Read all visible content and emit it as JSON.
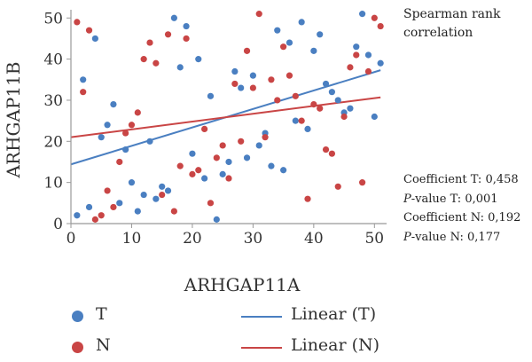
{
  "method_label": "Spearman rank correlation",
  "stats": {
    "coef_t_label": "Coefficient T: ",
    "coef_t": "0,458",
    "p_t_prefix": "P",
    "p_t_label": "-value T: ",
    "p_t": "0,001",
    "coef_n_label": "Coefficient N: ",
    "coef_n": "0,192",
    "p_n_prefix": "P",
    "p_n_label": "-value N: ",
    "p_n": "0,177"
  },
  "legend": {
    "t_label": "T",
    "n_label": "N",
    "linear_t_label": "Linear (T)",
    "linear_n_label": "Linear (N)"
  },
  "colors": {
    "T": "#4a7fc1",
    "N": "#c94545",
    "axis": "#999999"
  },
  "chart_data": {
    "type": "scatter",
    "xlabel": "ARHGAP11A",
    "ylabel": "ARHGAP11B",
    "xlim": [
      0,
      52
    ],
    "ylim": [
      0,
      52
    ],
    "xticks": [
      0,
      10,
      20,
      30,
      40,
      50
    ],
    "yticks": [
      0,
      10,
      20,
      30,
      40,
      50
    ],
    "grid": false,
    "series": [
      {
        "name": "T",
        "points": [
          [
            1,
            2
          ],
          [
            2,
            35
          ],
          [
            3,
            4
          ],
          [
            4,
            45
          ],
          [
            5,
            21
          ],
          [
            6,
            24
          ],
          [
            7,
            29
          ],
          [
            8,
            5
          ],
          [
            9,
            18
          ],
          [
            10,
            10
          ],
          [
            11,
            3
          ],
          [
            12,
            7
          ],
          [
            13,
            20
          ],
          [
            14,
            6
          ],
          [
            15,
            9
          ],
          [
            16,
            8
          ],
          [
            17,
            50
          ],
          [
            18,
            38
          ],
          [
            19,
            48
          ],
          [
            20,
            17
          ],
          [
            21,
            40
          ],
          [
            22,
            11
          ],
          [
            23,
            31
          ],
          [
            24,
            1
          ],
          [
            25,
            12
          ],
          [
            26,
            15
          ],
          [
            27,
            37
          ],
          [
            28,
            33
          ],
          [
            29,
            16
          ],
          [
            30,
            36
          ],
          [
            31,
            19
          ],
          [
            32,
            22
          ],
          [
            33,
            14
          ],
          [
            34,
            47
          ],
          [
            35,
            13
          ],
          [
            36,
            44
          ],
          [
            37,
            25
          ],
          [
            38,
            49
          ],
          [
            39,
            23
          ],
          [
            40,
            42
          ],
          [
            41,
            46
          ],
          [
            42,
            34
          ],
          [
            43,
            32
          ],
          [
            44,
            30
          ],
          [
            45,
            27
          ],
          [
            46,
            28
          ],
          [
            47,
            43
          ],
          [
            48,
            51
          ],
          [
            49,
            41
          ],
          [
            50,
            26
          ],
          [
            51,
            39
          ]
        ]
      },
      {
        "name": "N",
        "points": [
          [
            1,
            49
          ],
          [
            2,
            32
          ],
          [
            3,
            47
          ],
          [
            4,
            1
          ],
          [
            5,
            2
          ],
          [
            6,
            8
          ],
          [
            7,
            4
          ],
          [
            8,
            15
          ],
          [
            9,
            22
          ],
          [
            10,
            24
          ],
          [
            11,
            27
          ],
          [
            12,
            40
          ],
          [
            13,
            44
          ],
          [
            14,
            39
          ],
          [
            15,
            7
          ],
          [
            16,
            46
          ],
          [
            17,
            3
          ],
          [
            18,
            14
          ],
          [
            19,
            45
          ],
          [
            20,
            12
          ],
          [
            21,
            13
          ],
          [
            22,
            23
          ],
          [
            23,
            5
          ],
          [
            24,
            16
          ],
          [
            25,
            19
          ],
          [
            26,
            11
          ],
          [
            27,
            34
          ],
          [
            28,
            20
          ],
          [
            29,
            42
          ],
          [
            30,
            33
          ],
          [
            31,
            51
          ],
          [
            32,
            21
          ],
          [
            33,
            35
          ],
          [
            34,
            30
          ],
          [
            35,
            43
          ],
          [
            36,
            36
          ],
          [
            37,
            31
          ],
          [
            38,
            25
          ],
          [
            39,
            6
          ],
          [
            40,
            29
          ],
          [
            41,
            28
          ],
          [
            42,
            18
          ],
          [
            43,
            17
          ],
          [
            44,
            9
          ],
          [
            45,
            26
          ],
          [
            46,
            38
          ],
          [
            47,
            41
          ],
          [
            48,
            10
          ],
          [
            49,
            37
          ],
          [
            50,
            50
          ],
          [
            51,
            48
          ]
        ]
      }
    ],
    "trendlines": [
      {
        "name": "Linear (T)",
        "from": [
          0,
          14.4
        ],
        "to": [
          51,
          37.3
        ]
      },
      {
        "name": "Linear (N)",
        "from": [
          0,
          21.0
        ],
        "to": [
          51,
          30.7
        ]
      }
    ]
  }
}
